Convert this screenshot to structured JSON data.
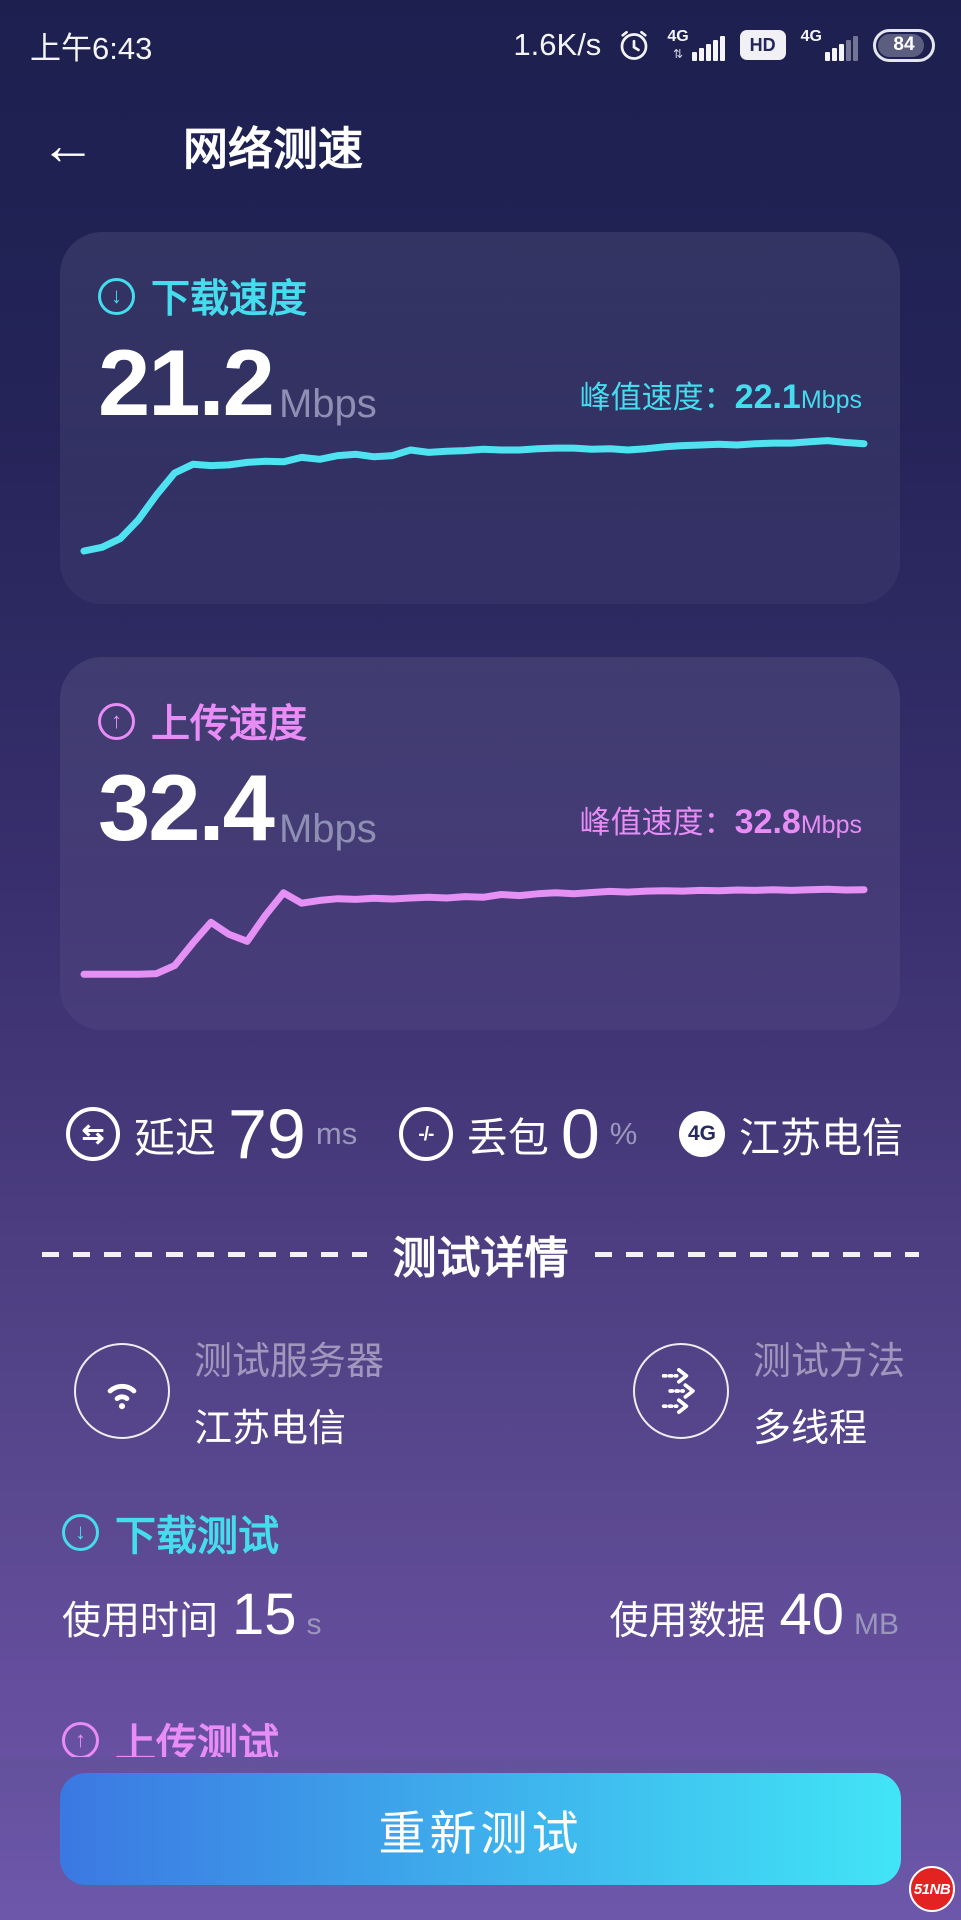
{
  "status_bar": {
    "time": "上午6:43",
    "net_speed": "1.6K/s",
    "sim1_label": "4G",
    "sim2_label": "4G",
    "hd_label": "HD",
    "battery_percent": "84"
  },
  "header": {
    "title": "网络测速"
  },
  "icons": {
    "back": "←",
    "download_arrow": "↓",
    "upload_arrow": "↑",
    "latency": "⇆",
    "packet_loss": "-/-",
    "operator": "4G",
    "data_arrows": "⇅"
  },
  "download_card": {
    "label": "下载速度",
    "value": "21.2",
    "unit": "Mbps",
    "peak_label": "峰值速度：",
    "peak_value": "22.1",
    "peak_unit": "Mbps"
  },
  "upload_card": {
    "label": "上传速度",
    "value": "32.4",
    "unit": "Mbps",
    "peak_label": "峰值速度：",
    "peak_value": "32.8",
    "peak_unit": "Mbps"
  },
  "stats": {
    "items": [
      {
        "label": "延迟",
        "value": "79",
        "unit": "ms"
      },
      {
        "label": "丢包",
        "value": "0",
        "unit": "%"
      },
      {
        "icon": "4G",
        "label": "江苏电信"
      }
    ]
  },
  "details": {
    "divider_title": "测试详情",
    "server_label": "测试服务器",
    "server_value": "江苏电信",
    "method_label": "测试方法",
    "method_value": "多线程"
  },
  "download_test": {
    "title": "下载测试",
    "time_label": "使用时间",
    "time_value": "15",
    "time_unit": "s",
    "data_label": "使用数据",
    "data_value": "40",
    "data_unit": "MB"
  },
  "upload_test": {
    "title": "上传测试"
  },
  "retest_button": {
    "label": "重新测试"
  },
  "watermark": {
    "label": "51NB"
  },
  "colors": {
    "accent_cyan": "#45dcee",
    "accent_pink": "#e78df5",
    "download_line": "#4fe3f2",
    "upload_line": "#e490f4",
    "button_gradient_start": "#3b78e2",
    "button_gradient_end": "#41e5f6",
    "bg_top": "#1d204f",
    "bg_bottom": "#6d57ac",
    "watermark_red": "#e32222"
  },
  "chart_data": [
    {
      "type": "line",
      "name": "下载速度",
      "unit": "Mbps",
      "color": "#4fe3f2",
      "ylim": [
        0,
        25
      ],
      "final_mbps": 21.2,
      "peak_mbps": 22.1,
      "duration_s": 15,
      "values": [
        4.0,
        4.6,
        6.0,
        9.0,
        13.0,
        16.5,
        17.9,
        17.7,
        17.8,
        18.2,
        18.4,
        18.3,
        19.0,
        18.7,
        19.3,
        19.5,
        19.1,
        19.3,
        20.2,
        19.8,
        20.0,
        20.1,
        20.3,
        20.2,
        20.2,
        20.4,
        20.5,
        20.5,
        20.3,
        20.4,
        20.2,
        20.4,
        20.7,
        20.9,
        21.0,
        21.1,
        21.0,
        21.2,
        21.3,
        21.3,
        21.5,
        21.7,
        21.4,
        21.2
      ]
    },
    {
      "type": "line",
      "name": "上传速度",
      "unit": "Mbps",
      "color": "#e490f4",
      "ylim": [
        0,
        45
      ],
      "final_mbps": 32.4,
      "peak_mbps": 32.8,
      "values": [
        8.0,
        8.0,
        8.0,
        8.0,
        8.2,
        10.5,
        17.0,
        23.0,
        19.5,
        17.5,
        25.0,
        31.5,
        28.5,
        29.3,
        29.8,
        29.6,
        29.9,
        29.7,
        30.0,
        30.2,
        30.0,
        30.4,
        30.2,
        31.0,
        30.7,
        31.2,
        31.5,
        31.2,
        31.6,
        31.9,
        31.7,
        32.0,
        32.1,
        32.0,
        32.2,
        32.1,
        32.3,
        32.2,
        32.4,
        32.2,
        32.4,
        32.5,
        32.3,
        32.4
      ]
    }
  ]
}
